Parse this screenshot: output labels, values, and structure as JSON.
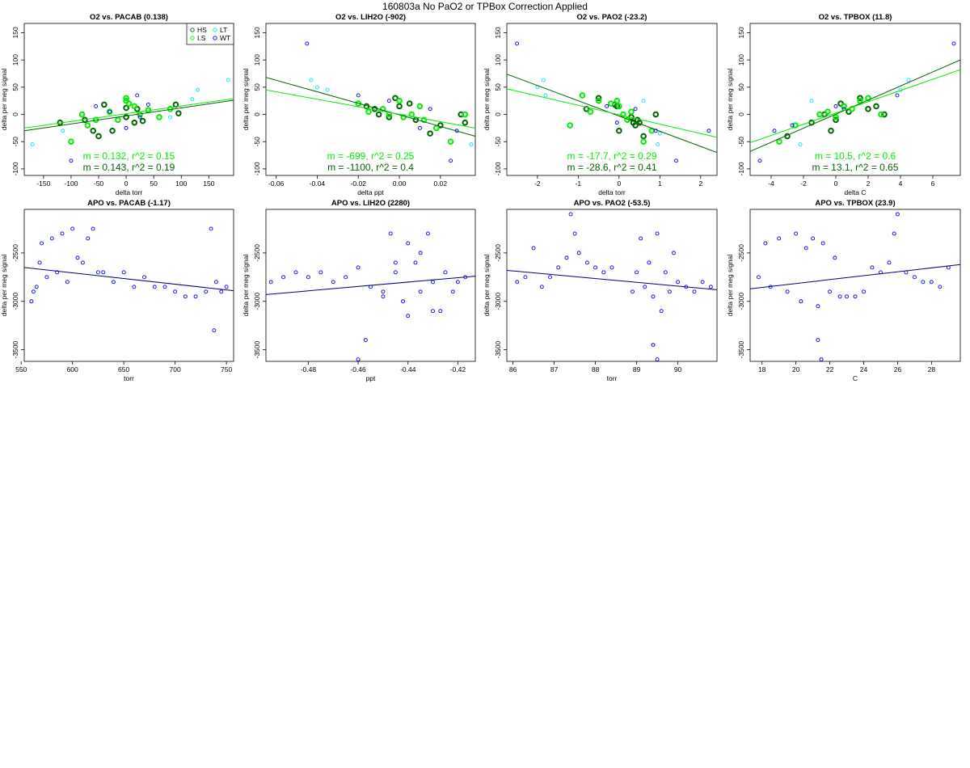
{
  "page": {
    "title": "160803a   No PaO2 or TPBox Correction Applied"
  },
  "colors": {
    "HS": "#006400",
    "I.S": "#00ee00",
    "LT": "#00e5ee",
    "WT": "#0000ee",
    "fit_dark": "#006400",
    "fit_light": "#00ee00",
    "apo_points": "#0000ee",
    "apo_fit": "#000080"
  },
  "legend": {
    "position": "top-right of first panel",
    "entries": [
      {
        "label": "HS",
        "color": "#006400"
      },
      {
        "label": "LT",
        "color": "#00e5ee"
      },
      {
        "label": "I.S",
        "color": "#00ee00"
      },
      {
        "label": "WT",
        "color": "#0000ee"
      }
    ]
  },
  "chart_data": [
    {
      "type": "scatter",
      "title": "O2 vs. PACAB (0.138)",
      "xlabel": "delta torr",
      "ylabel": "delta per meg signal",
      "xlim": [
        -185,
        195
      ],
      "ylim": [
        -112,
        167
      ],
      "xticks": [
        -150,
        -100,
        -50,
        0,
        50,
        100,
        150
      ],
      "yticks": [
        -100,
        -50,
        0,
        50,
        100,
        150
      ],
      "grid": false,
      "annotations": [
        {
          "text": "m = 0.132, r^2 = 0.15",
          "group": "I.S"
        },
        {
          "text": "m = 0.143, r^2 = 0.19",
          "group": "HS"
        }
      ],
      "fits": [
        {
          "group": "HS",
          "x": [
            -185,
            195
          ],
          "y": [
            -30,
            26
          ]
        },
        {
          "group": "I.S",
          "x": [
            -185,
            195
          ],
          "y": [
            -25,
            29
          ]
        }
      ],
      "series": [
        {
          "name": "HS",
          "x": [
            -120,
            -75,
            -60,
            -50,
            -40,
            -25,
            0,
            0,
            15,
            20,
            30,
            90,
            95
          ],
          "y": [
            -15,
            -10,
            -30,
            -40,
            18,
            -30,
            12,
            -5,
            -15,
            10,
            -12,
            18,
            2
          ]
        },
        {
          "name": "I.S",
          "x": [
            -100,
            -80,
            -70,
            -55,
            -30,
            -15,
            0,
            0,
            5,
            15,
            25,
            40,
            60,
            80
          ],
          "y": [
            -50,
            0,
            -20,
            -10,
            5,
            -10,
            30,
            25,
            20,
            15,
            0,
            8,
            -5,
            10
          ]
        },
        {
          "name": "LT",
          "x": [
            -170,
            -115,
            80,
            120,
            130,
            185
          ],
          "y": [
            -55,
            -30,
            -5,
            28,
            45,
            63
          ]
        },
        {
          "name": "WT",
          "x": [
            -100,
            -55,
            -30,
            0,
            20,
            25,
            40
          ],
          "y": [
            -85,
            15,
            5,
            -25,
            35,
            -5,
            18
          ]
        }
      ]
    },
    {
      "type": "scatter",
      "title": "O2 vs. LIH2O (-902)",
      "xlabel": "delta ppt",
      "ylabel": "delta per meg signal",
      "xlim": [
        -0.065,
        0.037
      ],
      "ylim": [
        -112,
        167
      ],
      "xticks": [
        -0.06,
        -0.04,
        -0.02,
        0.0,
        0.02
      ],
      "xtick_labels": [
        "-0.06",
        "-0.04",
        "-0.02",
        "0.00",
        "0.02"
      ],
      "yticks": [
        -100,
        -50,
        0,
        50,
        100,
        150
      ],
      "grid": false,
      "annotations": [
        {
          "text": "m = -699, r^2 = 0.25",
          "group": "I.S"
        },
        {
          "text": "m = -1100, r^2 = 0.4",
          "group": "HS"
        }
      ],
      "fits": [
        {
          "group": "HS",
          "x": [
            -0.065,
            0.037
          ],
          "y": [
            68,
            -40
          ]
        },
        {
          "group": "I.S",
          "x": [
            -0.065,
            0.037
          ],
          "y": [
            45,
            -25
          ]
        }
      ],
      "series": [
        {
          "name": "HS",
          "x": [
            -0.016,
            -0.012,
            -0.01,
            -0.005,
            -0.002,
            0.0,
            0.005,
            0.008,
            0.015,
            0.02,
            0.032,
            0.03
          ],
          "y": [
            15,
            10,
            0,
            -5,
            30,
            15,
            20,
            -10,
            -35,
            -20,
            -15,
            0
          ]
        },
        {
          "name": "I.S",
          "x": [
            -0.02,
            -0.015,
            -0.008,
            -0.005,
            0.0,
            0.002,
            0.006,
            0.01,
            0.012,
            0.018,
            0.025,
            0.032
          ],
          "y": [
            20,
            5,
            10,
            0,
            25,
            -5,
            0,
            15,
            -10,
            -25,
            -50,
            0
          ]
        },
        {
          "name": "LT",
          "x": [
            -0.043,
            -0.04,
            -0.035,
            0.035
          ],
          "y": [
            63,
            50,
            45,
            -55
          ]
        },
        {
          "name": "WT",
          "x": [
            -0.045,
            -0.02,
            -0.005,
            0.01,
            0.015,
            0.025,
            0.028
          ],
          "y": [
            130,
            35,
            25,
            -25,
            10,
            -85,
            -30
          ]
        }
      ]
    },
    {
      "type": "scatter",
      "title": "O2 vs. PAO2 (-23.2)",
      "xlabel": "delta torr",
      "ylabel": "delta per meg signal",
      "xlim": [
        -2.75,
        2.4
      ],
      "ylim": [
        -112,
        167
      ],
      "xticks": [
        -2,
        -1,
        0,
        1,
        2
      ],
      "yticks": [
        -100,
        -50,
        0,
        50,
        100,
        150
      ],
      "grid": false,
      "annotations": [
        {
          "text": "m = -17.7, r^2 = 0.29",
          "group": "I.S"
        },
        {
          "text": "m = -28.6, r^2 = 0.41",
          "group": "HS"
        }
      ],
      "fits": [
        {
          "group": "HS",
          "x": [
            -2.75,
            2.4
          ],
          "y": [
            74,
            -70
          ]
        },
        {
          "group": "I.S",
          "x": [
            -2.75,
            2.4
          ],
          "y": [
            47,
            -42
          ]
        }
      ],
      "series": [
        {
          "name": "HS",
          "x": [
            -0.8,
            -0.5,
            -0.1,
            -0.05,
            0.0,
            0.3,
            0.35,
            0.4,
            0.45,
            0.5,
            0.6,
            0.9
          ],
          "y": [
            10,
            30,
            18,
            15,
            -30,
            -5,
            -15,
            -20,
            -10,
            -15,
            -40,
            0
          ]
        },
        {
          "name": "I.S",
          "x": [
            -1.2,
            -0.9,
            -0.7,
            -0.5,
            -0.2,
            -0.05,
            0.0,
            0.1,
            0.2,
            0.3,
            0.6,
            0.8
          ],
          "y": [
            -20,
            35,
            5,
            25,
            20,
            25,
            15,
            0,
            -10,
            5,
            -50,
            -30
          ]
        },
        {
          "name": "LT",
          "x": [
            -2.0,
            -1.85,
            -1.8,
            0.6,
            0.95,
            1.0
          ],
          "y": [
            50,
            63,
            35,
            25,
            -55,
            -35
          ]
        },
        {
          "name": "WT",
          "x": [
            -2.5,
            -0.3,
            -0.05,
            0.4,
            0.9,
            1.4,
            2.2
          ],
          "y": [
            130,
            15,
            -15,
            10,
            -30,
            -85,
            -30
          ]
        }
      ]
    },
    {
      "type": "scatter",
      "title": "O2 vs. TPBOX (11.8)",
      "xlabel": "delta C",
      "ylabel": "delta per meg signal",
      "xlim": [
        -5.3,
        7.7
      ],
      "ylim": [
        -112,
        167
      ],
      "xticks": [
        -4,
        -2,
        0,
        2,
        4,
        6
      ],
      "yticks": [
        -100,
        -50,
        0,
        50,
        100,
        150
      ],
      "grid": false,
      "annotations": [
        {
          "text": "m = 10.5, r^2 = 0.6",
          "group": "I.S"
        },
        {
          "text": "m = 13.1, r^2 = 0.65",
          "group": "HS"
        }
      ],
      "fits": [
        {
          "group": "HS",
          "x": [
            -5.3,
            7.7
          ],
          "y": [
            -68,
            100
          ]
        },
        {
          "group": "I.S",
          "x": [
            -5.3,
            7.7
          ],
          "y": [
            -52,
            82
          ]
        }
      ],
      "series": [
        {
          "name": "HS",
          "x": [
            -3.0,
            -1.5,
            -0.7,
            -0.3,
            0.0,
            0.3,
            0.5,
            0.8,
            1.5,
            2.0,
            2.5,
            3.0
          ],
          "y": [
            -40,
            -15,
            0,
            -30,
            -10,
            20,
            15,
            5,
            30,
            10,
            15,
            0
          ]
        },
        {
          "name": "I.S",
          "x": [
            -3.5,
            -2.5,
            -1.0,
            -0.5,
            0.0,
            0.5,
            1.0,
            1.5,
            2.0,
            2.8
          ],
          "y": [
            -50,
            -20,
            0,
            5,
            -5,
            15,
            10,
            25,
            30,
            0
          ]
        },
        {
          "name": "LT",
          "x": [
            -2.2,
            -1.5,
            4.0,
            4.5
          ],
          "y": [
            -55,
            25,
            45,
            63
          ]
        },
        {
          "name": "WT",
          "x": [
            -4.7,
            -3.8,
            -2.7,
            0.0,
            0.5,
            3.8,
            7.3
          ],
          "y": [
            -85,
            -30,
            -20,
            15,
            10,
            35,
            130
          ]
        }
      ]
    },
    {
      "type": "scatter",
      "title": "APO vs. PACAB (-1.17)",
      "xlabel": "torr",
      "ylabel": "delta per meg signal",
      "xlim": [
        553,
        757
      ],
      "ylim": [
        -3620,
        -2050
      ],
      "xticks": [
        550,
        600,
        650,
        700,
        750
      ],
      "yticks": [
        -3500,
        -3000,
        -2500
      ],
      "grid": false,
      "fits": [
        {
          "group": "APO",
          "x": [
            553,
            757
          ],
          "y": [
            -2650,
            -2890
          ]
        }
      ],
      "series": [
        {
          "name": "APO",
          "x": [
            560,
            562,
            565,
            568,
            570,
            575,
            580,
            585,
            590,
            595,
            600,
            605,
            610,
            615,
            620,
            625,
            630,
            640,
            650,
            660,
            670,
            680,
            690,
            700,
            710,
            720,
            730,
            735,
            738,
            740,
            745,
            750
          ],
          "y": [
            -3000,
            -2900,
            -2850,
            -2600,
            -2400,
            -2750,
            -2350,
            -2700,
            -2300,
            -2800,
            -2250,
            -2550,
            -2600,
            -2350,
            -2250,
            -2700,
            -2700,
            -2800,
            -2700,
            -2850,
            -2750,
            -2850,
            -2850,
            -2900,
            -2950,
            -2950,
            -2900,
            -2250,
            -3300,
            -2800,
            -2900,
            -2850
          ]
        }
      ]
    },
    {
      "type": "scatter",
      "title": "APO vs. LIH2O (2280)",
      "xlabel": "ppt",
      "ylabel": "delta per meg signal",
      "xlim": [
        -0.497,
        -0.413
      ],
      "ylim": [
        -3620,
        -2050
      ],
      "xticks": [
        -0.48,
        -0.46,
        -0.44,
        -0.42
      ],
      "xtick_labels": [
        "-0.48",
        "-0.46",
        "-0.44",
        "-0.42"
      ],
      "yticks": [
        -3500,
        -3000,
        -2500
      ],
      "grid": false,
      "fits": [
        {
          "group": "APO",
          "x": [
            -0.497,
            -0.413
          ],
          "y": [
            -2930,
            -2740
          ]
        }
      ],
      "series": [
        {
          "name": "APO",
          "x": [
            -0.495,
            -0.49,
            -0.485,
            -0.48,
            -0.475,
            -0.47,
            -0.465,
            -0.46,
            -0.455,
            -0.45,
            -0.447,
            -0.445,
            -0.442,
            -0.44,
            -0.437,
            -0.435,
            -0.432,
            -0.43,
            -0.427,
            -0.425,
            -0.422,
            -0.42,
            -0.417,
            -0.46,
            -0.457,
            -0.45,
            -0.44,
            -0.43,
            -0.435,
            -0.445
          ],
          "y": [
            -2800,
            -2750,
            -2700,
            -2750,
            -2700,
            -2800,
            -2750,
            -2650,
            -2850,
            -2900,
            -2300,
            -2700,
            -3000,
            -2400,
            -2600,
            -2900,
            -2300,
            -2800,
            -3100,
            -2700,
            -2900,
            -2800,
            -2750,
            -3600,
            -3400,
            -2950,
            -3150,
            -3100,
            -2500,
            -2600
          ]
        }
      ]
    },
    {
      "type": "scatter",
      "title": "APO vs. PAO2 (-53.5)",
      "xlabel": "torr",
      "ylabel": "delta per meg signal",
      "xlim": [
        85.85,
        90.95
      ],
      "ylim": [
        -3620,
        -2050
      ],
      "xticks": [
        86,
        87,
        88,
        89,
        90
      ],
      "yticks": [
        -3500,
        -3000,
        -2500
      ],
      "grid": false,
      "fits": [
        {
          "group": "APO",
          "x": [
            85.85,
            90.95
          ],
          "y": [
            -2680,
            -2880
          ]
        }
      ],
      "series": [
        {
          "name": "APO",
          "x": [
            86.1,
            86.3,
            86.5,
            86.7,
            86.9,
            87.1,
            87.3,
            87.4,
            87.5,
            87.6,
            87.8,
            88.0,
            88.2,
            88.4,
            88.9,
            89.0,
            89.1,
            89.2,
            89.3,
            89.4,
            89.5,
            89.6,
            89.7,
            89.8,
            89.9,
            90.0,
            90.2,
            90.4,
            90.6,
            90.8,
            89.4,
            89.5
          ],
          "y": [
            -2800,
            -2750,
            -2450,
            -2850,
            -2750,
            -2650,
            -2550,
            -2100,
            -2300,
            -2500,
            -2600,
            -2650,
            -2700,
            -2650,
            -2900,
            -2700,
            -2350,
            -2850,
            -2600,
            -2950,
            -2300,
            -3100,
            -2700,
            -2900,
            -2500,
            -2800,
            -2850,
            -2900,
            -2800,
            -2850,
            -3450,
            -3600
          ]
        }
      ]
    },
    {
      "type": "scatter",
      "title": "APO vs. TPBOX (23.9)",
      "xlabel": "C",
      "ylabel": "delta per meg signal",
      "xlim": [
        17.3,
        29.7
      ],
      "ylim": [
        -3620,
        -2050
      ],
      "xticks": [
        18,
        20,
        22,
        24,
        26,
        28
      ],
      "yticks": [
        -3500,
        -3000,
        -2500
      ],
      "grid": false,
      "fits": [
        {
          "group": "APO",
          "x": [
            17.3,
            29.7
          ],
          "y": [
            -2870,
            -2620
          ]
        }
      ],
      "series": [
        {
          "name": "APO",
          "x": [
            17.8,
            18.2,
            18.5,
            19.0,
            19.5,
            20.0,
            20.3,
            20.6,
            21.0,
            21.3,
            21.6,
            22.0,
            22.3,
            22.6,
            23.0,
            23.5,
            24.0,
            24.5,
            25.0,
            25.5,
            25.8,
            26.0,
            26.5,
            27.0,
            27.5,
            28.0,
            28.5,
            29.0,
            21.3,
            21.5
          ],
          "y": [
            -2750,
            -2400,
            -2850,
            -2350,
            -2900,
            -2300,
            -3000,
            -2450,
            -2350,
            -3050,
            -2400,
            -2900,
            -2550,
            -2950,
            -2950,
            -2950,
            -2900,
            -2650,
            -2700,
            -2600,
            -2300,
            -2100,
            -2700,
            -2750,
            -2800,
            -2800,
            -2850,
            -2650,
            -3400,
            -3600
          ]
        }
      ]
    }
  ]
}
